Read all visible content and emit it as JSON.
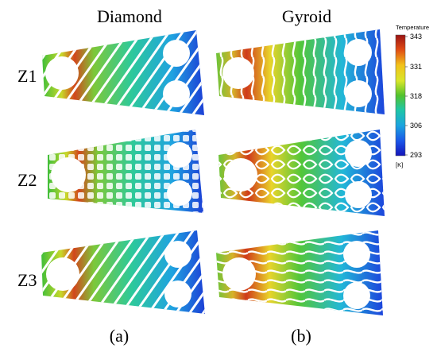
{
  "columns": [
    "Diamond",
    "Gyroid"
  ],
  "rows": [
    "Z1",
    "Z2",
    "Z3"
  ],
  "captions": [
    "(a)",
    "(b)"
  ],
  "colorbar": {
    "title": "Temperature",
    "unit": "[K]",
    "ticks": [
      "343",
      "331",
      "318",
      "306",
      "293"
    ],
    "colors": [
      "#b01818",
      "#e85a14",
      "#f2c21a",
      "#d8e62a",
      "#52c22c",
      "#1fc6a6",
      "#1ba4df",
      "#1b55e8",
      "#1414b8"
    ]
  },
  "palette": {
    "hot": "#c21c12",
    "warm": "#f0a020",
    "mid": "#3fc43a",
    "cool": "#26b9d8",
    "cold": "#2248e0"
  }
}
